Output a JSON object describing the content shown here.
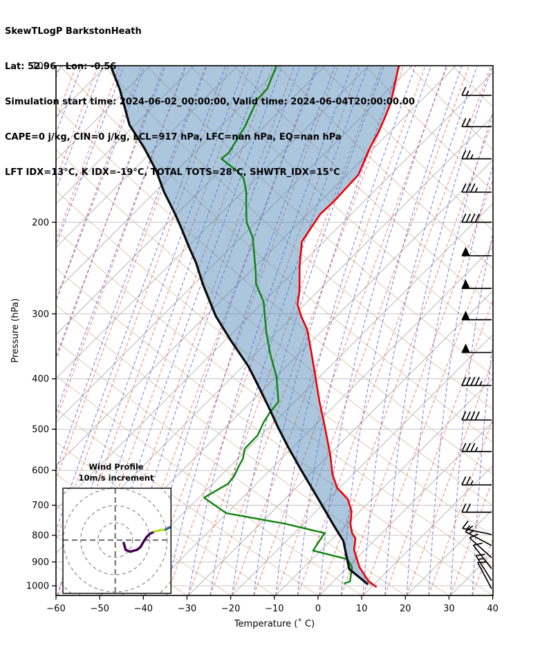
{
  "header": {
    "title": "SkewTLogP BarkstonHeath",
    "location_line": "Lat: 52.96   Lon: -0.56",
    "time_line": "Simulation start time: 2024-06-02_00:00:00, Valid time: 2024-06-04T20:00:00.00",
    "cape_line": "CAPE=0 j/kg, CIN=0 j/kg, LCL=917 hPa, LFC=nan hPa, EQ=nan hPa",
    "index_line": "LFT IDX=13°C, K IDX=-19°C, TOTAL TOTS=28°C, SHWTR_IDX=15°C"
  },
  "chart_data": {
    "type": "skewt-logp",
    "x_axis": {
      "label": "Temperature (˚ C)",
      "ticks": [
        -60,
        -50,
        -40,
        -30,
        -20,
        -10,
        0,
        10,
        20,
        30,
        40
      ],
      "range": [
        -60,
        40
      ]
    },
    "y_axis": {
      "label": "Pressure (hPa)",
      "ticks": [
        100,
        200,
        300,
        400,
        500,
        600,
        700,
        800,
        900,
        1000
      ],
      "range": [
        100,
        1040
      ],
      "scale": "log"
    },
    "skew_deg": 45,
    "grid_on": true,
    "colors": {
      "temperature": "#ee0000",
      "dewpoint": "#0b830b",
      "parcel": "#0a0a0a",
      "shade_fill": "rgba(70,130,180,0.45)",
      "isotherms": "#b5b5b5",
      "gridlines": "#c4c4c4",
      "dry_adiabats": "rgba(210,180,140,0.75)",
      "moist_adiabats": "rgba(68,68,216,0.62)",
      "mixing_lines": "rgba(240,75,75,0.62)",
      "barbs": "#000000"
    },
    "series": {
      "temperature": [
        [
          100,
          -103.1
        ],
        [
          118,
          -96.4
        ],
        [
          128,
          -93.9
        ],
        [
          134,
          -92.6
        ],
        [
          145,
          -90.7
        ],
        [
          162,
          -87.4
        ],
        [
          182,
          -86.9
        ],
        [
          193,
          -87.1
        ],
        [
          218,
          -85.0
        ],
        [
          243,
          -79.9
        ],
        [
          271,
          -74.3
        ],
        [
          288,
          -71.6
        ],
        [
          304,
          -67.9
        ],
        [
          322,
          -63.6
        ],
        [
          354,
          -57.8
        ],
        [
          391,
          -51.8
        ],
        [
          443,
          -44.3
        ],
        [
          481,
          -39.1
        ],
        [
          525,
          -33.7
        ],
        [
          563,
          -29.4
        ],
        [
          610,
          -24.8
        ],
        [
          648,
          -20.6
        ],
        [
          682,
          -15.5
        ],
        [
          719,
          -11.9
        ],
        [
          760,
          -9.3
        ],
        [
          792,
          -6.8
        ],
        [
          811,
          -4.8
        ],
        [
          853,
          -2.5
        ],
        [
          921,
          2.7
        ],
        [
          979,
          7.9
        ],
        [
          1006,
          11.2
        ]
      ],
      "dewpoint": [
        [
          100,
          -131.1
        ],
        [
          111,
          -127.9
        ],
        [
          116,
          -127.8
        ],
        [
          131,
          -124.4
        ],
        [
          147,
          -122.1
        ],
        [
          151,
          -122.4
        ],
        [
          160,
          -115.6
        ],
        [
          165,
          -112.7
        ],
        [
          175,
          -109.1
        ],
        [
          189,
          -105.1
        ],
        [
          200,
          -102.1
        ],
        [
          214,
          -97.2
        ],
        [
          249,
          -88.7
        ],
        [
          262,
          -86.0
        ],
        [
          285,
          -79.9
        ],
        [
          325,
          -72.5
        ],
        [
          358,
          -66.6
        ],
        [
          397,
          -59.8
        ],
        [
          443,
          -53.7
        ],
        [
          465,
          -53.2
        ],
        [
          485,
          -52.4
        ],
        [
          514,
          -50.8
        ],
        [
          545,
          -50.7
        ],
        [
          570,
          -48.8
        ],
        [
          588,
          -48.1
        ],
        [
          614,
          -46.9
        ],
        [
          637,
          -46.5
        ],
        [
          677,
          -48.8
        ],
        [
          725,
          -40.2
        ],
        [
          760,
          -24.2
        ],
        [
          792,
          -13.1
        ],
        [
          856,
          -11.7
        ],
        [
          889,
          -1.9
        ],
        [
          921,
          1.0
        ],
        [
          981,
          3.8
        ],
        [
          990,
          2.9
        ]
      ],
      "parcel": [
        [
          100,
          -169.1
        ],
        [
          111,
          -161.6
        ],
        [
          130,
          -151.2
        ],
        [
          144,
          -142.5
        ],
        [
          159,
          -134.7
        ],
        [
          175,
          -127.9
        ],
        [
          193,
          -120.3
        ],
        [
          207,
          -115.1
        ],
        [
          223,
          -109.7
        ],
        [
          239,
          -104.5
        ],
        [
          264,
          -97.7
        ],
        [
          303,
          -87.7
        ],
        [
          337,
          -78.8
        ],
        [
          379,
          -68.6
        ],
        [
          425,
          -59.7
        ],
        [
          459,
          -53.8
        ],
        [
          495,
          -48.1
        ],
        [
          542,
          -41.0
        ],
        [
          599,
          -32.9
        ],
        [
          657,
          -25.3
        ],
        [
          705,
          -19.5
        ],
        [
          766,
          -12.7
        ],
        [
          820,
          -7.0
        ],
        [
          929,
          0.8
        ],
        [
          994,
          8.6
        ]
      ]
    },
    "shade_between": [
      "parcel",
      "temperature"
    ],
    "wind_barbs_units": "m/s",
    "wind_barbs": [
      [
        114,
        15,
        0
      ],
      [
        131,
        20,
        0
      ],
      [
        151,
        25,
        0
      ],
      [
        175,
        35,
        0
      ],
      [
        200,
        40,
        0
      ],
      [
        232,
        50,
        0
      ],
      [
        268,
        50,
        0
      ],
      [
        308,
        50,
        0
      ],
      [
        356,
        50,
        0
      ],
      [
        412,
        45,
        0
      ],
      [
        480,
        40,
        0
      ],
      [
        552,
        35,
        0
      ],
      [
        640,
        25,
        0
      ],
      [
        722,
        20,
        0
      ],
      [
        797,
        15,
        12
      ],
      [
        837,
        15,
        28
      ],
      [
        883,
        10,
        42
      ],
      [
        927,
        10,
        52
      ],
      [
        978,
        15,
        58
      ],
      [
        1013,
        10,
        62
      ]
    ],
    "background": {
      "isotherm_step_deg": 10,
      "moist_step_deg": 5,
      "mixing_step_deg": 5,
      "dash": "5 3"
    },
    "hodograph": {
      "title": "Wind Profile",
      "subtitle": "10m/s increment",
      "ring_values_ms": [
        10,
        20,
        30,
        40
      ],
      "trace_segments": [
        {
          "color": "#440154",
          "points": [
            [
              4.9,
              -1.6
            ],
            [
              6.0,
              -5.6
            ],
            [
              8.6,
              -6.7
            ],
            [
              12.6,
              -5.6
            ],
            [
              14.6,
              -4.0
            ],
            [
              16.6,
              -0.5
            ],
            [
              18.4,
              2.1
            ],
            [
              20.0,
              3.7
            ],
            [
              22.6,
              4.8
            ]
          ]
        },
        {
          "color": "#b5de2b",
          "points": [
            [
              22.6,
              4.8
            ],
            [
              26.0,
              5.8
            ],
            [
              29.3,
              6.1
            ]
          ]
        },
        {
          "color": "#31688e",
          "points": [
            [
              29.3,
              6.1
            ],
            [
              30.0,
              6.7
            ],
            [
              33.2,
              8.0
            ]
          ]
        }
      ]
    }
  }
}
